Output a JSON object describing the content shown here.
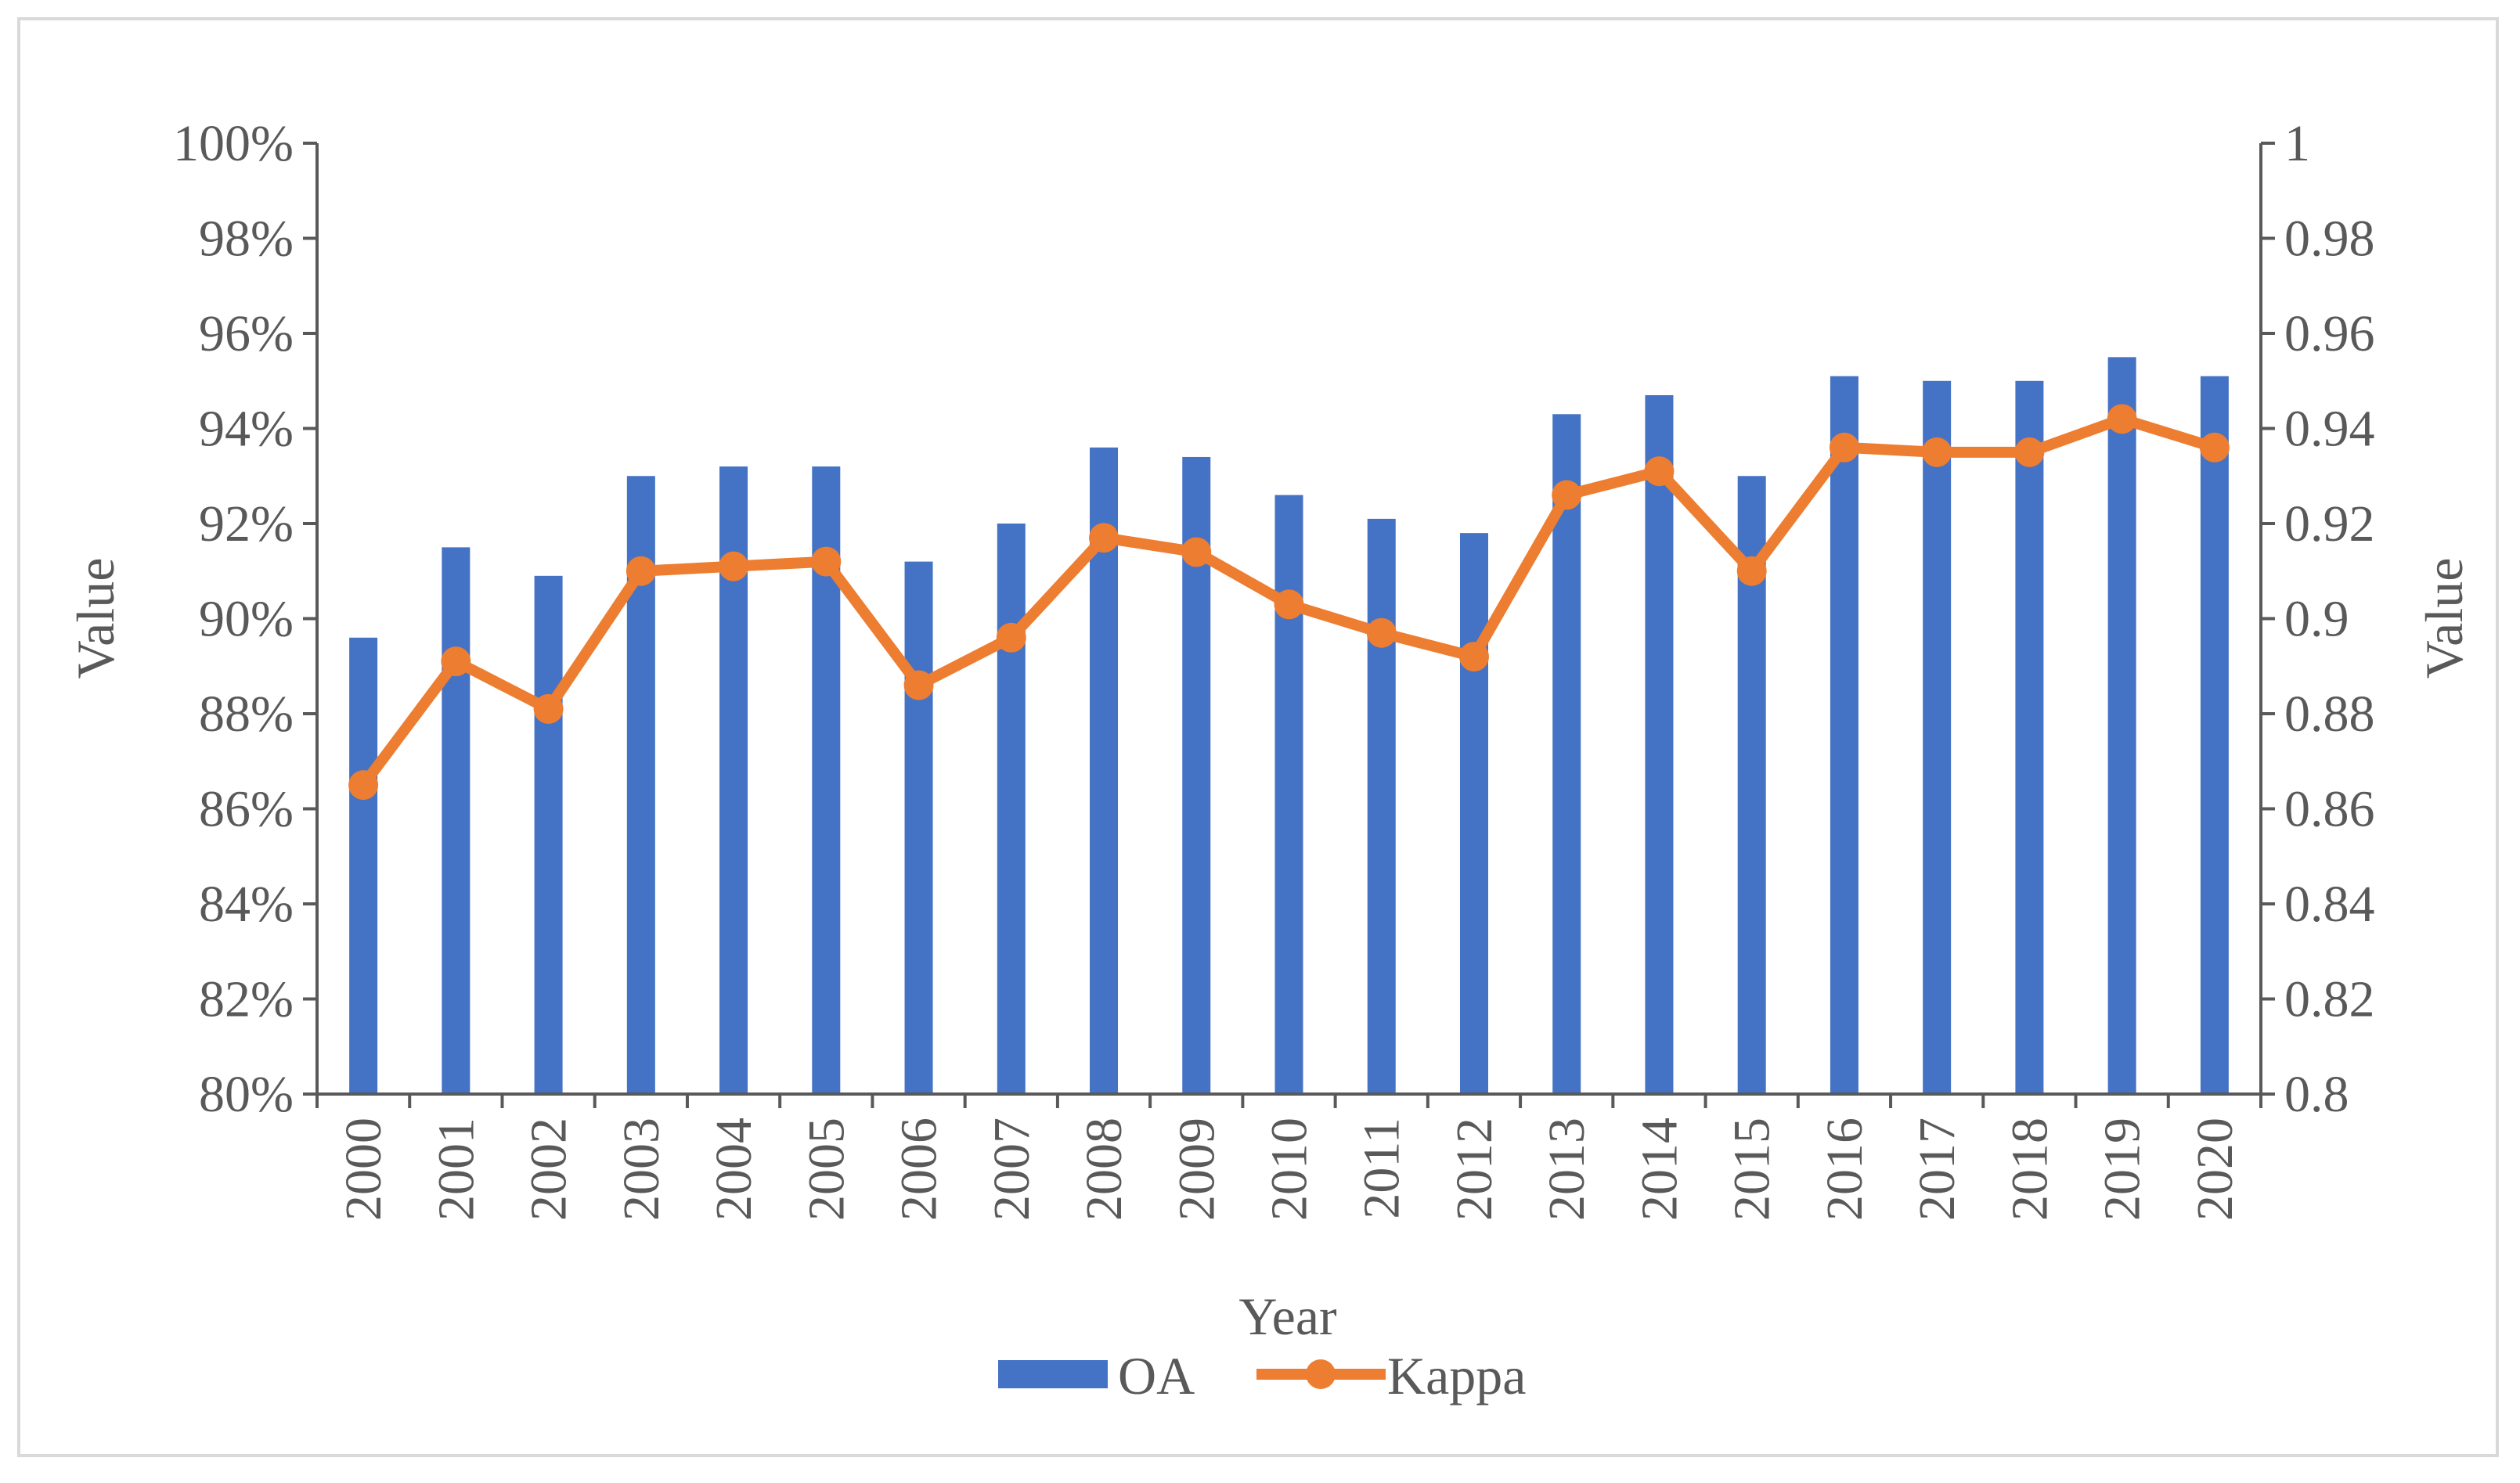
{
  "chart_data": {
    "type": "bar",
    "title": "",
    "categories": [
      "2000",
      "2001",
      "2002",
      "2003",
      "2004",
      "2005",
      "2006",
      "2007",
      "2008",
      "2009",
      "2010",
      "2011",
      "2012",
      "2013",
      "2014",
      "2015",
      "2016",
      "2017",
      "2018",
      "2019",
      "2020"
    ],
    "series": [
      {
        "name": "OA",
        "type": "bar",
        "axis": "left",
        "color": "#4472c4",
        "values": [
          89.6,
          91.5,
          90.9,
          93.0,
          93.2,
          93.2,
          91.2,
          92.0,
          93.6,
          93.4,
          92.6,
          92.1,
          91.8,
          94.3,
          94.7,
          93.0,
          95.1,
          95.0,
          95.0,
          95.5,
          95.1
        ]
      },
      {
        "name": "Kappa",
        "type": "line",
        "axis": "right",
        "color": "#ed7d31",
        "values": [
          0.865,
          0.891,
          0.881,
          0.91,
          0.911,
          0.912,
          0.886,
          0.896,
          0.917,
          0.914,
          0.903,
          0.897,
          0.892,
          0.926,
          0.931,
          0.91,
          0.936,
          0.935,
          0.935,
          0.942,
          0.936
        ]
      }
    ],
    "xlabel": "Year",
    "ylabel": "Value",
    "y2label": "Value",
    "ylim": [
      80,
      100
    ],
    "y2lim": [
      0.8,
      1.0
    ],
    "yticks": [
      "80%",
      "82%",
      "84%",
      "86%",
      "88%",
      "90%",
      "92%",
      "94%",
      "96%",
      "98%",
      "100%"
    ],
    "y2ticks": [
      "0.8",
      "0.82",
      "0.84",
      "0.86",
      "0.88",
      "0.9",
      "0.92",
      "0.94",
      "0.96",
      "0.98",
      "1"
    ],
    "grid": false,
    "legend_position": "bottom"
  }
}
